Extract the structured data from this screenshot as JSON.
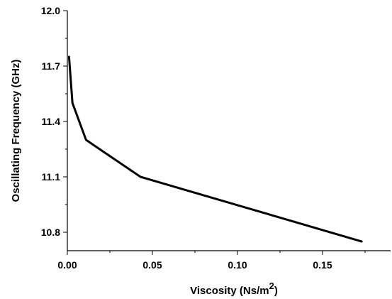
{
  "chart_data": {
    "type": "line",
    "title": "",
    "xlabel": "Viscosity (Ns/m",
    "xlabel_sup": "2",
    "xlabel_close": ")",
    "ylabel": "Oscillating Frequency (GHz)",
    "xlim": [
      0,
      0.19
    ],
    "ylim": [
      10.7,
      12.0
    ],
    "x_ticks": [
      0.0,
      0.05,
      0.1,
      0.15
    ],
    "x_tick_labels": [
      "0.00",
      "0.05",
      "0.10",
      "0.15"
    ],
    "y_ticks": [
      10.8,
      11.1,
      11.4,
      11.7,
      12.0
    ],
    "y_tick_labels": [
      "10.8",
      "11.1",
      "11.4",
      "11.7",
      "12.0"
    ],
    "grid": false,
    "series": [
      {
        "x": [
          0.001,
          0.003,
          0.011,
          0.043,
          0.173
        ],
        "y": [
          11.75,
          11.5,
          11.3,
          11.1,
          10.75
        ],
        "color": "#000000"
      }
    ]
  }
}
